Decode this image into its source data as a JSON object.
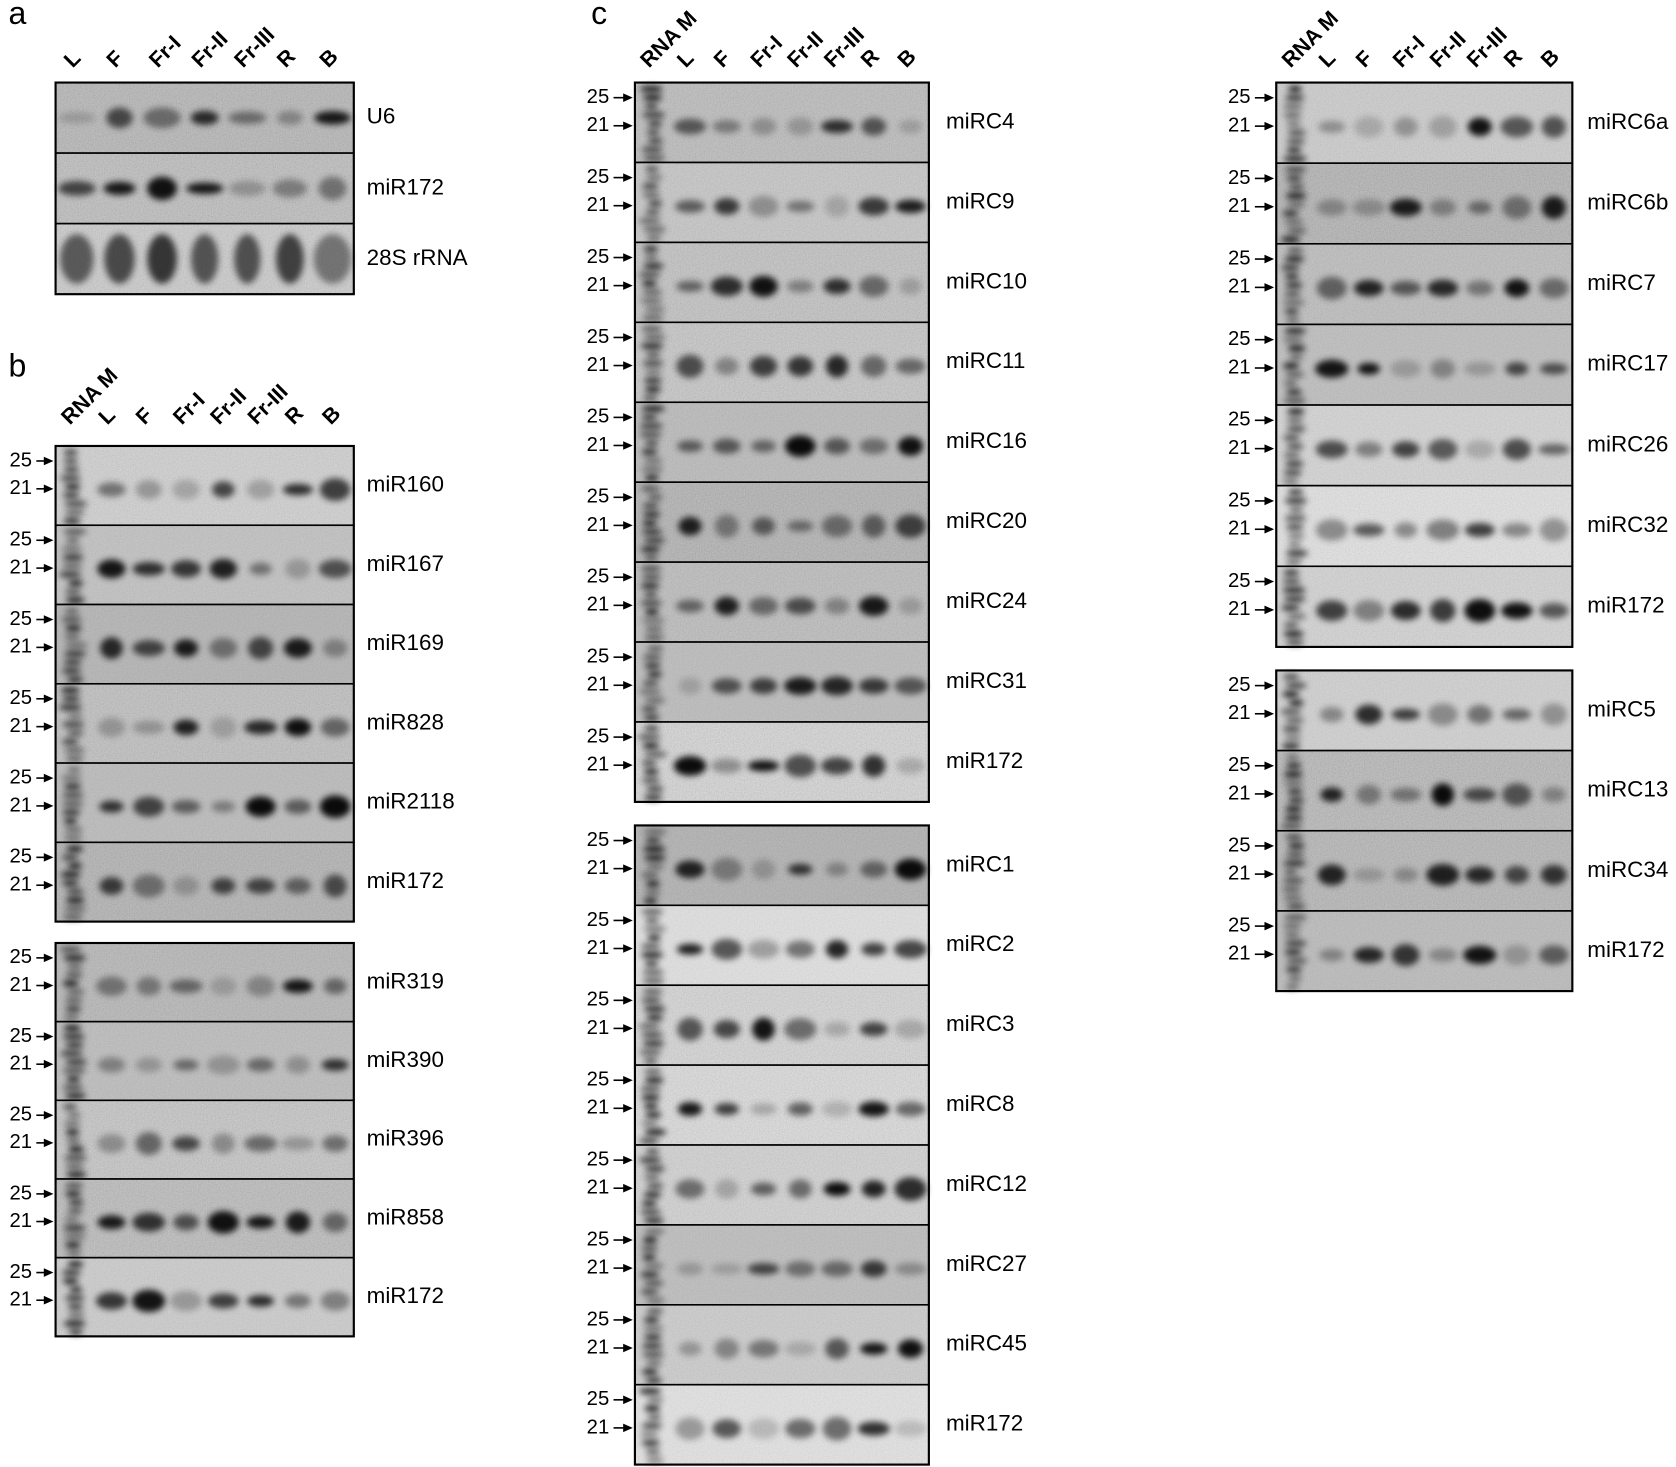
{
  "panels": [
    {
      "label": "a",
      "lanes": [
        "L",
        "F",
        "Fr-I",
        "Fr-II",
        "Fr-III",
        "R",
        "B"
      ],
      "groups": [
        [
          "U6",
          "miR172",
          "28S rRNA"
        ]
      ]
    },
    {
      "label": "b",
      "lanes": [
        "RNA M",
        "L",
        "F",
        "Fr-I",
        "Fr-II",
        "Fr-III",
        "R",
        "B"
      ],
      "markers": [
        "25",
        "21"
      ],
      "groups": [
        [
          "miR160",
          "miR167",
          "miR169",
          "miR828",
          "miR2118",
          "miR172"
        ],
        [
          "miR319",
          "miR390",
          "miR396",
          "miR858",
          "miR172"
        ]
      ]
    },
    {
      "label": "c",
      "columns": [
        {
          "lanes": [
            "RNA M",
            "L",
            "F",
            "Fr-I",
            "Fr-II",
            "Fr-III",
            "R",
            "B"
          ],
          "markers": [
            "25",
            "21"
          ],
          "groups": [
            [
              "miRC4",
              "miRC9",
              "miRC10",
              "miRC11",
              "miRC16",
              "miRC20",
              "miRC24",
              "miRC31",
              "miR172"
            ],
            [
              "miRC1",
              "miRC2",
              "miRC3",
              "miRC8",
              "miRC12",
              "miRC27",
              "miRC45",
              "miR172"
            ]
          ]
        },
        {
          "lanes": [
            "RNA M",
            "L",
            "F",
            "Fr-I",
            "Fr-II",
            "Fr-III",
            "R",
            "B"
          ],
          "markers": [
            "25",
            "21"
          ],
          "groups": [
            [
              "miRC6a",
              "miRC6b",
              "miRC7",
              "miRC17",
              "miRC26",
              "miRC32",
              "miR172"
            ],
            [
              "miRC5",
              "miRC13",
              "miRC34",
              "miR172"
            ]
          ]
        }
      ]
    }
  ]
}
